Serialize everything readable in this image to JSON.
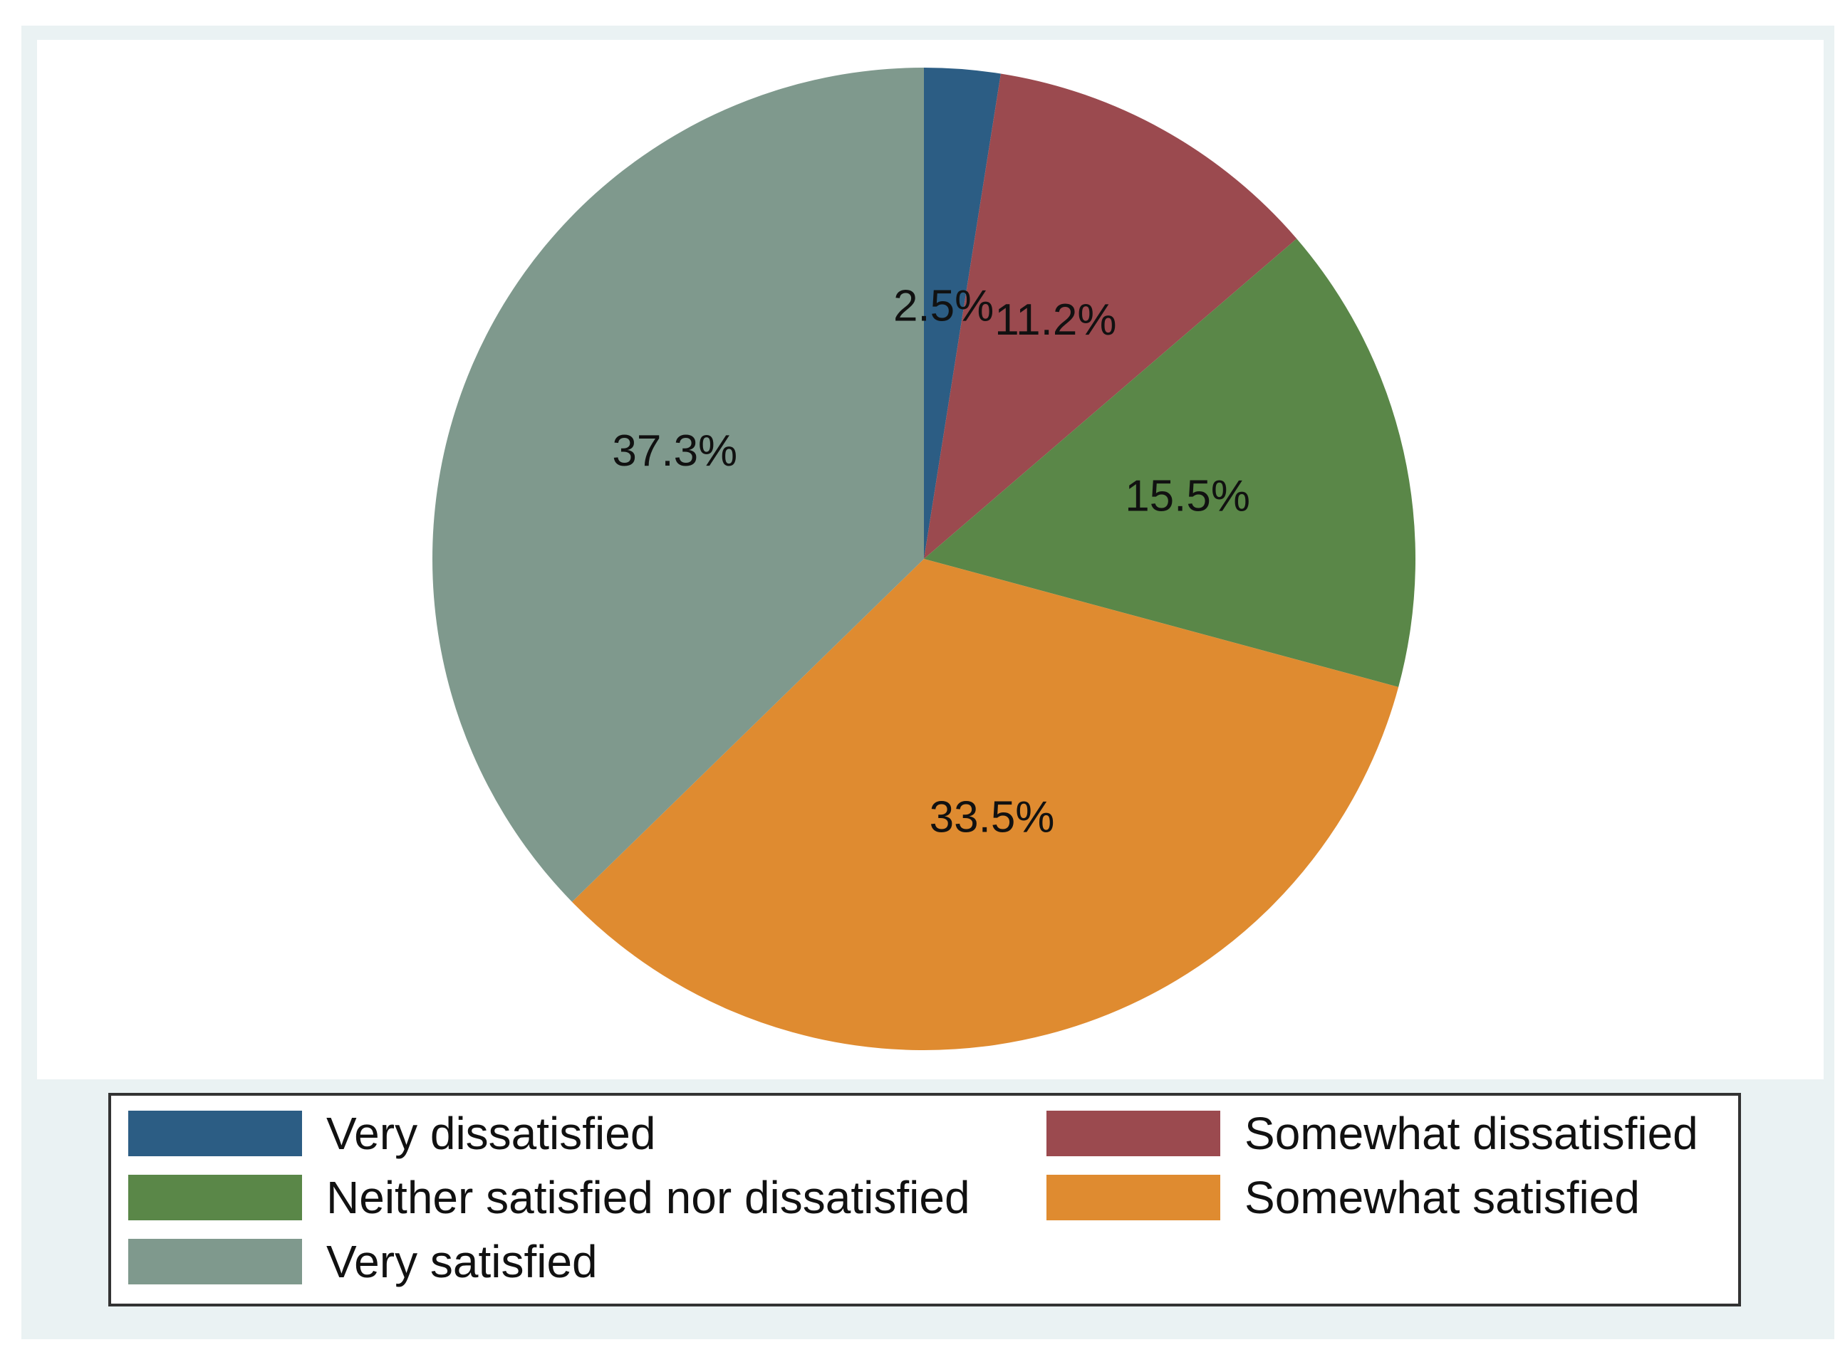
{
  "chart_data": {
    "type": "pie",
    "title": "",
    "categories": [
      "Very dissatisfied",
      "Somewhat dissatisfied",
      "Neither satisfied nor dissatisfied",
      "Somewhat satisfied",
      "Very satisfied"
    ],
    "values": [
      2.5,
      11.2,
      15.5,
      33.5,
      37.3
    ],
    "labels": [
      "2.5%",
      "11.2%",
      "15.5%",
      "33.5%",
      "37.3%"
    ],
    "colors": [
      "#2c5d84",
      "#9b4a4f",
      "#5a8748",
      "#df8b30",
      "#7f998d"
    ],
    "legend_position": "bottom",
    "legend": [
      {
        "label": "Very dissatisfied",
        "color": "#2c5d84"
      },
      {
        "label": "Somewhat dissatisfied",
        "color": "#9b4a4f"
      },
      {
        "label": "Neither satisfied nor dissatisfied",
        "color": "#5a8748"
      },
      {
        "label": "Somewhat satisfied",
        "color": "#df8b30"
      },
      {
        "label": "Very satisfied",
        "color": "#7f998d"
      }
    ]
  }
}
